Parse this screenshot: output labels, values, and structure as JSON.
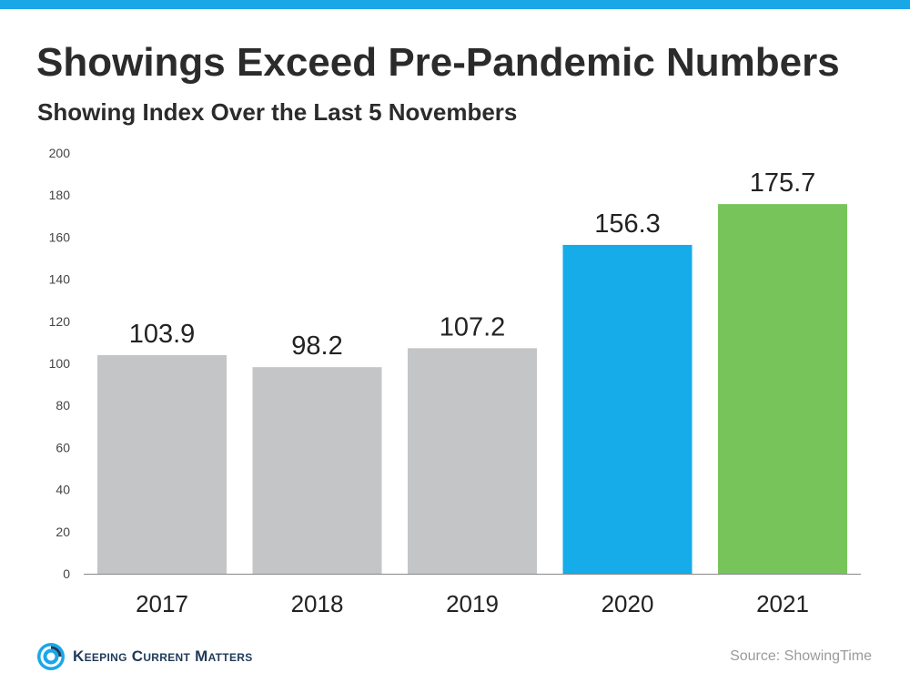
{
  "title": "Showings Exceed Pre-Pandemic Numbers",
  "subtitle": "Showing Index Over the Last 5 Novembers",
  "source": "Source: ShowingTime",
  "logo_text": "Keeping Current Matters",
  "colors": {
    "top_bar": "#1aa7e8",
    "gray_bar": "#c4c5c6",
    "blue_bar": "#16abe9",
    "green_bar": "#77c55a",
    "text": "#2b2b2b"
  },
  "chart_data": {
    "type": "bar",
    "title": "",
    "xlabel": "",
    "ylabel": "",
    "categories": [
      "2017",
      "2018",
      "2019",
      "2020",
      "2021"
    ],
    "values": [
      103.9,
      98.2,
      107.2,
      156.3,
      175.7
    ],
    "labels": [
      "103.9",
      "98.2",
      "107.2",
      "156.3",
      "175.7"
    ],
    "bar_colors": [
      "#c4c5c6",
      "#c4c5c6",
      "#c4c5c6",
      "#16abe9",
      "#77c55a"
    ],
    "ylim": [
      0,
      200
    ],
    "yticks": [
      0,
      20,
      40,
      60,
      80,
      100,
      120,
      140,
      160,
      180,
      200
    ],
    "grid": false,
    "legend": "none"
  }
}
